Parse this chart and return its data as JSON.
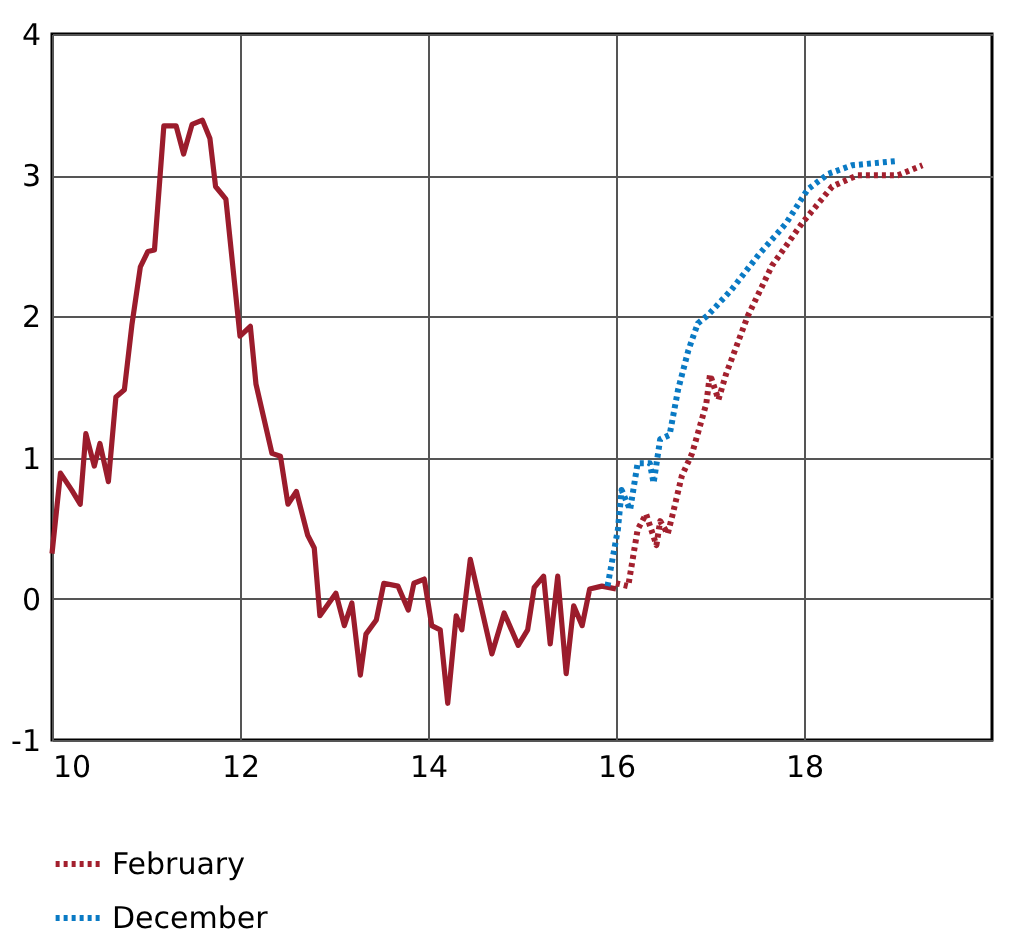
{
  "chart_data": {
    "type": "line",
    "xlim": [
      10,
      20
    ],
    "xticks": [
      10,
      12,
      14,
      16,
      18
    ],
    "ylim": [
      -1,
      4
    ],
    "yticks": [
      -1,
      0,
      1,
      2,
      3,
      4
    ],
    "grid": true,
    "legend": "bottom left",
    "marker": "none",
    "series": [
      {
        "color": "#9b1c2c",
        "line_style": "solid",
        "x": [
          10.0,
          10.09,
          10.21,
          10.3,
          10.36,
          10.45,
          10.51,
          10.6,
          10.68,
          10.77,
          10.85,
          10.94,
          11.02,
          11.09,
          11.19,
          11.32,
          11.4,
          11.49,
          11.6,
          11.68,
          11.74,
          11.85,
          12.0,
          12.11,
          12.17,
          12.34,
          12.43,
          12.51,
          12.6,
          12.72,
          12.79,
          12.85,
          13.02,
          13.11,
          13.19,
          13.28,
          13.34,
          13.45,
          13.53,
          13.68,
          13.79,
          13.85,
          13.96,
          14.04,
          14.13,
          14.21,
          14.3,
          14.36,
          14.45,
          14.68,
          14.81,
          14.96,
          15.06,
          15.13,
          15.23,
          15.3,
          15.38,
          15.47,
          15.55,
          15.64,
          15.72,
          15.85,
          16.0
        ],
        "values": [
          0.32,
          0.89,
          0.77,
          0.67,
          1.17,
          0.94,
          1.1,
          0.83,
          1.43,
          1.48,
          1.94,
          2.35,
          2.46,
          2.47,
          3.35,
          3.35,
          3.15,
          3.36,
          3.39,
          3.26,
          2.92,
          2.83,
          1.86,
          1.93,
          1.52,
          1.03,
          1.01,
          0.67,
          0.76,
          0.45,
          0.36,
          -0.12,
          0.04,
          -0.19,
          -0.03,
          -0.54,
          -0.25,
          -0.15,
          0.11,
          0.09,
          -0.08,
          0.11,
          0.14,
          -0.19,
          -0.22,
          -0.74,
          -0.12,
          -0.22,
          0.28,
          -0.39,
          -0.1,
          -0.33,
          -0.22,
          0.08,
          0.16,
          -0.32,
          0.16,
          -0.53,
          -0.05,
          -0.19,
          0.07,
          0.09,
          0.07
        ]
      },
      {
        "name": "February",
        "color": "#a3202e",
        "line_style": "dotted",
        "x": [
          16.0,
          16.13,
          16.23,
          16.32,
          16.43,
          16.47,
          16.55,
          16.6,
          16.7,
          16.81,
          16.96,
          17.0,
          17.09,
          17.17,
          17.4,
          17.66,
          17.98,
          18.3,
          18.57,
          19.0,
          19.15,
          19.26
        ],
        "values": [
          0.11,
          0.09,
          0.49,
          0.6,
          0.38,
          0.55,
          0.46,
          0.59,
          0.87,
          1.03,
          1.38,
          1.59,
          1.41,
          1.59,
          2.0,
          2.36,
          2.66,
          2.92,
          3.0,
          3.0,
          3.04,
          3.07
        ]
      },
      {
        "name": "December",
        "color": "#0a7ac4",
        "line_style": "dotted",
        "x": [
          15.91,
          16.02,
          16.06,
          16.15,
          16.23,
          16.36,
          16.4,
          16.47,
          16.57,
          16.66,
          16.77,
          16.87,
          16.98,
          17.23,
          17.51,
          17.81,
          18.04,
          18.26,
          18.51,
          18.98
        ],
        "values": [
          0.09,
          0.49,
          0.77,
          0.63,
          0.96,
          0.96,
          0.82,
          1.13,
          1.16,
          1.48,
          1.76,
          1.95,
          2.01,
          2.19,
          2.43,
          2.66,
          2.9,
          3.01,
          3.07,
          3.1
        ]
      }
    ]
  }
}
